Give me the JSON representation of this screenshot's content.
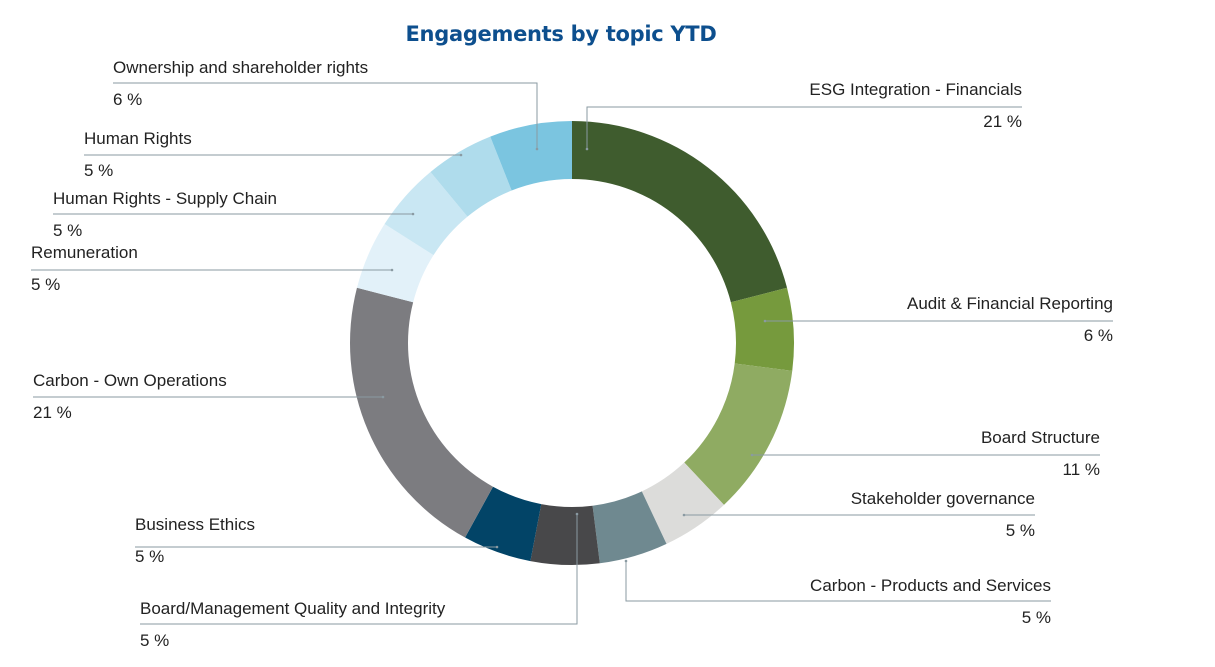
{
  "chart_data": {
    "type": "pie",
    "variant": "donut",
    "title": "Engagements by topic YTD",
    "unit": "%",
    "slices": [
      {
        "label": "ESG Integration - Financials",
        "value": 21,
        "display": "21 %",
        "color": "#3f5c2e"
      },
      {
        "label": "Audit & Financial Reporting",
        "value": 6,
        "display": "6 %",
        "color": "#769a3d"
      },
      {
        "label": "Board Structure",
        "value": 11,
        "display": "11 %",
        "color": "#8fab62"
      },
      {
        "label": "Stakeholder governance",
        "value": 5,
        "display": "5 %",
        "color": "#dcdcda"
      },
      {
        "label": "Carbon - Products and Services",
        "value": 5,
        "display": "5 %",
        "color": "#6f8990"
      },
      {
        "label": "Board/Management Quality and Integrity",
        "value": 5,
        "display": "5 %",
        "color": "#48484a"
      },
      {
        "label": "Business Ethics",
        "value": 5,
        "display": "5 %",
        "color": "#024467"
      },
      {
        "label": "Carbon - Own Operations",
        "value": 21,
        "display": "21 %",
        "color": "#7c7c80"
      },
      {
        "label": "Remuneration",
        "value": 5,
        "display": "5 %",
        "color": "#e2f1f9"
      },
      {
        "label": "Human Rights - Supply Chain",
        "value": 5,
        "display": "5 %",
        "color": "#c9e7f3"
      },
      {
        "label": "Human Rights",
        "value": 5,
        "display": "5 %",
        "color": "#afdcec"
      },
      {
        "label": "Ownership and shareholder rights",
        "value": 6,
        "display": "6 %",
        "color": "#7bc5e0"
      }
    ],
    "legend": "leader-line labels",
    "leader_color": "#8a9aa2",
    "title_color": "#0d4f8e"
  }
}
